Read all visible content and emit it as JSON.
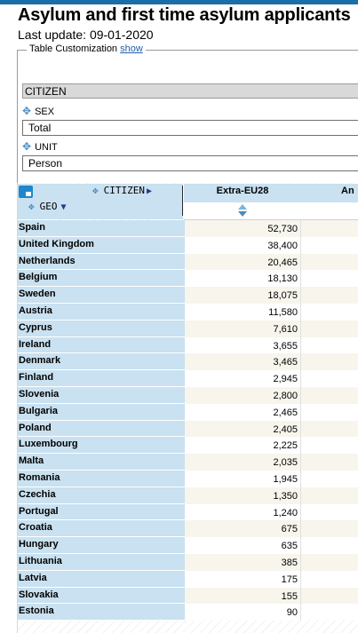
{
  "header": {
    "title": "Asylum and first time asylum applicants",
    "last_update": "Last update: 09-01-2020"
  },
  "customization": {
    "legend_text": "Table Customization",
    "show_link": "show",
    "citizen_label": "CITIZEN",
    "sex_label": "SEX",
    "sex_value": "Total",
    "unit_label": "UNIT",
    "unit_value": "Person"
  },
  "table": {
    "citizen_header": "CITIZEN",
    "geo_header": "GEO",
    "columns": [
      "Extra-EU28",
      "An"
    ],
    "rows": [
      {
        "geo": "Spain",
        "value": "52,730"
      },
      {
        "geo": "United Kingdom",
        "value": "38,400"
      },
      {
        "geo": "Netherlands",
        "value": "20,465"
      },
      {
        "geo": "Belgium",
        "value": "18,130"
      },
      {
        "geo": "Sweden",
        "value": "18,075"
      },
      {
        "geo": "Austria",
        "value": "11,580"
      },
      {
        "geo": "Cyprus",
        "value": "7,610"
      },
      {
        "geo": "Ireland",
        "value": "3,655"
      },
      {
        "geo": "Denmark",
        "value": "3,465"
      },
      {
        "geo": "Finland",
        "value": "2,945"
      },
      {
        "geo": "Slovenia",
        "value": "2,800"
      },
      {
        "geo": "Bulgaria",
        "value": "2,465"
      },
      {
        "geo": "Poland",
        "value": "2,405"
      },
      {
        "geo": "Luxembourg",
        "value": "2,225"
      },
      {
        "geo": "Malta",
        "value": "2,035"
      },
      {
        "geo": "Romania",
        "value": "1,945"
      },
      {
        "geo": "Czechia",
        "value": "1,350"
      },
      {
        "geo": "Portugal",
        "value": "1,240"
      },
      {
        "geo": "Croatia",
        "value": "675"
      },
      {
        "geo": "Hungary",
        "value": "635"
      },
      {
        "geo": "Lithuania",
        "value": "385"
      },
      {
        "geo": "Latvia",
        "value": "175"
      },
      {
        "geo": "Slovakia",
        "value": "155"
      },
      {
        "geo": "Estonia",
        "value": "90"
      }
    ]
  },
  "icons": {
    "move": "move-arrows-icon",
    "corner": "table-options-icon",
    "sort": "sort-icon"
  },
  "colors": {
    "accent": "#1b6ea8",
    "header_bg": "#c9e1f0",
    "row_alt": "#f7f5ec",
    "link": "#1f5fa9"
  }
}
